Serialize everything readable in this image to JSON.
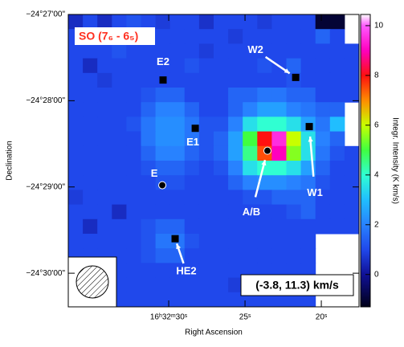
{
  "chart_data": {
    "type": "heatmap",
    "title": "SO (7₆ - 6₅)",
    "annotation": "(-3.8, 11.3) km/s",
    "xlabel": "Right Ascension",
    "ylabel": "Declination",
    "xlim": [
      36.58,
      17.53
    ],
    "xticks": [
      {
        "value": 30,
        "label": "16ʰ32ᵐ30ˢ"
      },
      {
        "value": 25,
        "label": "25ˢ"
      },
      {
        "value": 20,
        "label": "20ˢ"
      }
    ],
    "ylim": [
      27,
      30.39
    ],
    "yticks": [
      {
        "value": 27,
        "label": "−24°27'00\""
      },
      {
        "value": 28,
        "label": "−24°28'00\""
      },
      {
        "value": 29,
        "label": "−24°29'00\""
      },
      {
        "value": 30,
        "label": "−24°30'00\""
      }
    ],
    "colorbar": {
      "label": "Integr. Intensity (K km/s)",
      "lim": [
        -1.3,
        10.45
      ],
      "ticks": [
        0,
        2,
        4,
        6,
        8,
        10
      ]
    },
    "z": [
      [
        0.5,
        1,
        0.5,
        1,
        1.2,
        1,
        0.8,
        1,
        1,
        0.6,
        1,
        1,
        1,
        0.8,
        1,
        1,
        1,
        -1,
        -1,
        null
      ],
      [
        1,
        0.8,
        1,
        1,
        1,
        1.2,
        1,
        1,
        1,
        1,
        1,
        0.8,
        1,
        1,
        1,
        1,
        1,
        1.5,
        1,
        null
      ],
      [
        1,
        1,
        1,
        1.2,
        1,
        1,
        1,
        1,
        1,
        0.8,
        1,
        1,
        1,
        1,
        1,
        1,
        1,
        1,
        1,
        1
      ],
      [
        1,
        0.5,
        1,
        1,
        1,
        1,
        1,
        1,
        1.2,
        1,
        1,
        1,
        1,
        1.2,
        1,
        1.5,
        1,
        1,
        1,
        1
      ],
      [
        1,
        1,
        0.8,
        1,
        1,
        1,
        1,
        1,
        1,
        1,
        1,
        1,
        1,
        1,
        1,
        1.2,
        1,
        1,
        1,
        1
      ],
      [
        1,
        1,
        1,
        1,
        1,
        1.2,
        1.5,
        1.5,
        1,
        1,
        1,
        1.5,
        1.5,
        1.8,
        1.8,
        1.5,
        1.5,
        1,
        1,
        1
      ],
      [
        1,
        1,
        1,
        1,
        1,
        1.5,
        2,
        2,
        1.5,
        1,
        1,
        1.5,
        2,
        2.5,
        2.5,
        2,
        1.8,
        1.5,
        1.5,
        null
      ],
      [
        1,
        1,
        1,
        1,
        1.2,
        1.8,
        2.2,
        2.2,
        1.8,
        1.2,
        1.2,
        2,
        3.5,
        4,
        4,
        3.5,
        2.5,
        1.8,
        3,
        null
      ],
      [
        1,
        1,
        1,
        1,
        1,
        1.8,
        2.2,
        2.2,
        1.8,
        1.2,
        1.5,
        2.5,
        5,
        8,
        9.5,
        6,
        3.5,
        2,
        1.5,
        null
      ],
      [
        1,
        1,
        1,
        1,
        1,
        1.5,
        2,
        2,
        1.5,
        1.2,
        1.5,
        2.5,
        4.5,
        7.5,
        9,
        5.5,
        3.5,
        1.8,
        1.2,
        1
      ],
      [
        1,
        1,
        1,
        1,
        1,
        1.2,
        1.5,
        1.5,
        1.2,
        1,
        1.2,
        2,
        3.5,
        4,
        4,
        3.5,
        2.5,
        1.5,
        1,
        1
      ],
      [
        1,
        1,
        1,
        1,
        1,
        1,
        1.2,
        1.2,
        1,
        1,
        1,
        1.5,
        2,
        2.2,
        2.2,
        2,
        1.8,
        1.2,
        1,
        1
      ],
      [
        0.8,
        1,
        1,
        1,
        1,
        1,
        1,
        1,
        1,
        1,
        1,
        1,
        1.2,
        1.2,
        1.5,
        1.5,
        1.5,
        1,
        1,
        1
      ],
      [
        1,
        1,
        1,
        0.5,
        1,
        1,
        1,
        1,
        1,
        1,
        1,
        1,
        1,
        1,
        1,
        1.2,
        1.5,
        1,
        1,
        1
      ],
      [
        1,
        0.5,
        1,
        1,
        1,
        1.2,
        1.5,
        1.5,
        1,
        1,
        1,
        1,
        1,
        1,
        1,
        1,
        1,
        1,
        1,
        1
      ],
      [
        1,
        1,
        1,
        1,
        1,
        1.2,
        1.8,
        1.8,
        1.2,
        1,
        1,
        1,
        1,
        1,
        1,
        1,
        1,
        null,
        null,
        null
      ],
      [
        1,
        1,
        1,
        1,
        1,
        1.2,
        1.5,
        1.5,
        1,
        1,
        1,
        1,
        1,
        1,
        1,
        1,
        1,
        null,
        null,
        null
      ],
      [
        1,
        1,
        1,
        1,
        1,
        1,
        1,
        1,
        1,
        1,
        1,
        1,
        1,
        1,
        1,
        1,
        1,
        null,
        null,
        null
      ],
      [
        1,
        1,
        1,
        1,
        1,
        1,
        1,
        1,
        1,
        1,
        1,
        0.8,
        1,
        1,
        1,
        1,
        1,
        null,
        null,
        null
      ],
      [
        1,
        1,
        1,
        1,
        1,
        1,
        1,
        1,
        1,
        1,
        1,
        1,
        1,
        1,
        1,
        1,
        1,
        null,
        null,
        null
      ]
    ],
    "sources": [
      {
        "label": "E2",
        "marker": "square",
        "x": 30.37,
        "y": 27.76
      },
      {
        "label": "W2",
        "marker": "square",
        "x": 21.68,
        "y": 27.73
      },
      {
        "label": "E1",
        "marker": "square",
        "x": 28.26,
        "y": 28.32
      },
      {
        "label": "W1",
        "marker": "square",
        "x": 20.79,
        "y": 28.3
      },
      {
        "label": "A/B",
        "marker": "circle",
        "x": 23.53,
        "y": 28.58
      },
      {
        "label": "E",
        "marker": "circle",
        "x": 30.42,
        "y": 28.98
      },
      {
        "label": "HE2",
        "marker": "square",
        "x": 29.58,
        "y": 29.6
      }
    ]
  }
}
